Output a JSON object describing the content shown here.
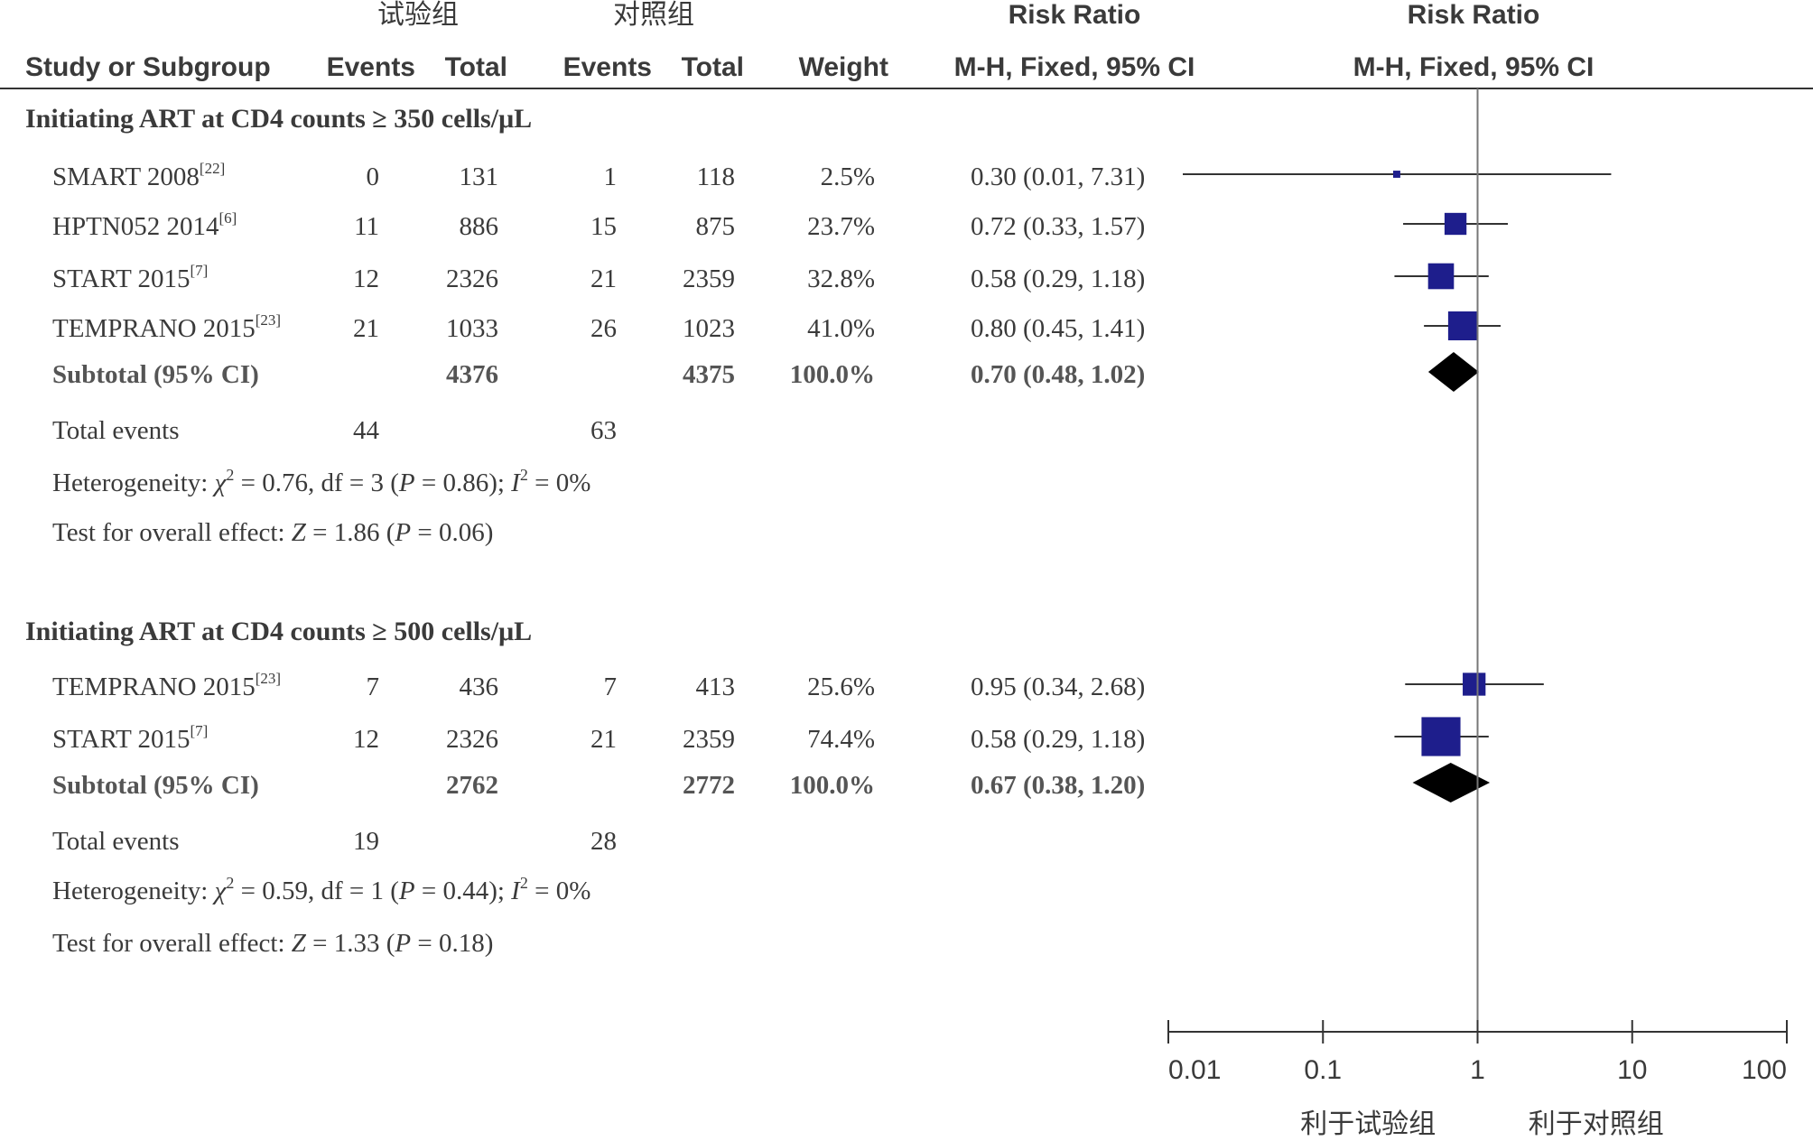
{
  "header": {
    "exp_group": "试验组",
    "ctrl_group": "对照组",
    "rr_title": "Risk Ratio",
    "plot_title": "Risk Ratio",
    "col_study": "Study or Subgroup",
    "col_exp_events": "Events",
    "col_exp_total": "Total",
    "col_ctrl_events": "Events",
    "col_ctrl_total": "Total",
    "col_weight": "Weight",
    "col_rr_method": "M-H, Fixed, 95% CI",
    "plot_method": "M-H, Fixed, 95% CI"
  },
  "chart_data": {
    "type": "forest",
    "x_scale": "log",
    "x_ticks": [
      "0.01",
      "0.1",
      "1",
      "10",
      "100"
    ],
    "xlim": [
      0.01,
      100
    ],
    "reference_line": 1,
    "x_left_label": "利于试验组",
    "x_right_label": "利于对照组",
    "subgroups": [
      {
        "title": "Initiating ART at CD4 counts ≥ 350 cells/μL",
        "studies": [
          {
            "name": "SMART 2008",
            "ref": "[22]",
            "exp_events": "0",
            "exp_total": "131",
            "ctrl_events": "1",
            "ctrl_total": "118",
            "weight": "2.5%",
            "ci_text": "0.30 (0.01, 7.31)",
            "rr": 0.3,
            "lo": 0.01,
            "hi": 7.31,
            "w": 2.5
          },
          {
            "name": "HPTN052 2014",
            "ref": "[6]",
            "exp_events": "11",
            "exp_total": "886",
            "ctrl_events": "15",
            "ctrl_total": "875",
            "weight": "23.7%",
            "ci_text": "0.72 (0.33, 1.57)",
            "rr": 0.72,
            "lo": 0.33,
            "hi": 1.57,
            "w": 23.7
          },
          {
            "name": "START 2015",
            "ref": "[7]",
            "exp_events": "12",
            "exp_total": "2326",
            "ctrl_events": "21",
            "ctrl_total": "2359",
            "weight": "32.8%",
            "ci_text": "0.58 (0.29, 1.18)",
            "rr": 0.58,
            "lo": 0.29,
            "hi": 1.18,
            "w": 32.8
          },
          {
            "name": "TEMPRANO 2015",
            "ref": "[23]",
            "exp_events": "21",
            "exp_total": "1033",
            "ctrl_events": "26",
            "ctrl_total": "1023",
            "weight": "41.0%",
            "ci_text": "0.80 (0.45, 1.41)",
            "rr": 0.8,
            "lo": 0.45,
            "hi": 1.41,
            "w": 41.0
          }
        ],
        "subtotal": {
          "label": "Subtotal (95% CI)",
          "exp_total": "4376",
          "ctrl_total": "4375",
          "weight": "100.0%",
          "ci_text": "0.70 (0.48, 1.02)",
          "rr": 0.7,
          "lo": 0.48,
          "hi": 1.02
        },
        "total_events_label": "Total events",
        "total_exp_events": "44",
        "total_ctrl_events": "63",
        "het_prefix": "Heterogeneity: ",
        "het_chi": "χ",
        "het_mid": " = 0.76, df = 3 (",
        "het_p": "P",
        "het_p_val": " = 0.86); ",
        "het_i": "I",
        "het_end": " = 0%",
        "effect_prefix": "Test for overall effect: ",
        "effect_z": "Z",
        "effect_mid": " = 1.86 (",
        "effect_p": "P",
        "effect_end": " = 0.06)"
      },
      {
        "title": "Initiating ART at CD4 counts ≥ 500 cells/μL",
        "studies": [
          {
            "name": "TEMPRANO 2015",
            "ref": "[23]",
            "exp_events": "7",
            "exp_total": "436",
            "ctrl_events": "7",
            "ctrl_total": "413",
            "weight": "25.6%",
            "ci_text": "0.95 (0.34, 2.68)",
            "rr": 0.95,
            "lo": 0.34,
            "hi": 2.68,
            "w": 25.6
          },
          {
            "name": "START 2015",
            "ref": "[7]",
            "exp_events": "12",
            "exp_total": "2326",
            "ctrl_events": "21",
            "ctrl_total": "2359",
            "weight": "74.4%",
            "ci_text": "0.58 (0.29, 1.18)",
            "rr": 0.58,
            "lo": 0.29,
            "hi": 1.18,
            "w": 74.4
          }
        ],
        "subtotal": {
          "label": "Subtotal (95% CI)",
          "exp_total": "2762",
          "ctrl_total": "2772",
          "weight": "100.0%",
          "ci_text": "0.67 (0.38, 1.20)",
          "rr": 0.67,
          "lo": 0.38,
          "hi": 1.2
        },
        "total_events_label": "Total events",
        "total_exp_events": "19",
        "total_ctrl_events": "28",
        "het_prefix": "Heterogeneity: ",
        "het_chi": "χ",
        "het_mid": " = 0.59, df = 1 (",
        "het_p": "P",
        "het_p_val": " = 0.44); ",
        "het_i": "I",
        "het_end": " = 0%",
        "effect_prefix": "Test for overall effect: ",
        "effect_z": "Z",
        "effect_mid": " = 1.33 (",
        "effect_p": "P",
        "effect_end": " = 0.18)"
      }
    ]
  },
  "colors": {
    "text": "#3a3a3a",
    "subtotal_text": "#555555",
    "marker": "#1e1e8c",
    "diamond": "#000000",
    "line": "#333333",
    "ref_line": "#777777"
  }
}
